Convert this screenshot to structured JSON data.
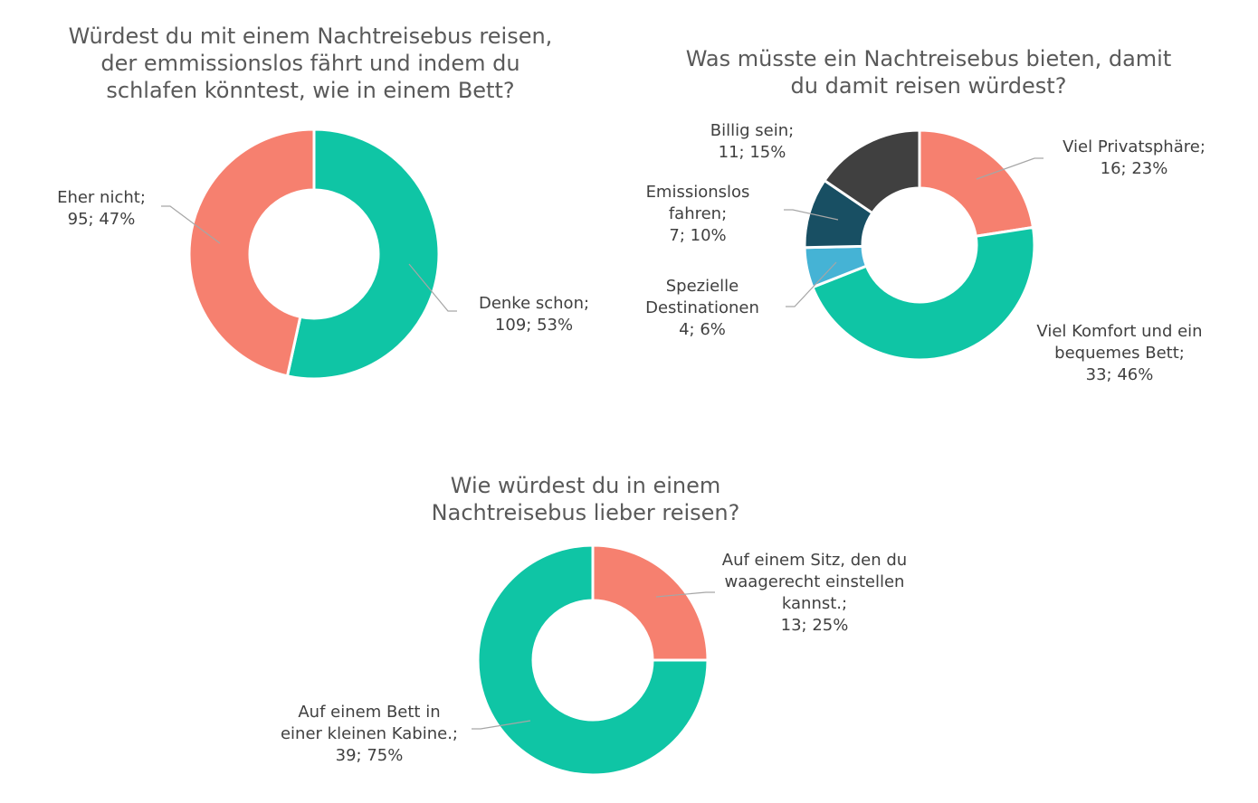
{
  "chart_data": [
    {
      "type": "pie",
      "variant": "donut",
      "title": "Würdest du mit einem Nachtreisebus reisen, der emmissionslos fährt und indem du schlafen könntest, wie in einem Bett?",
      "title_lines": [
        "Würdest du mit einem Nachtreisebus reisen,",
        "der emmissionslos fährt und indem du",
        "schlafen könntest, wie in einem Bett?"
      ],
      "slices": [
        {
          "label": "Denke schon",
          "value": 109,
          "percent": "53%",
          "color": "#0FC5A5",
          "label_lines": [
            "Denke schon;",
            "109; 53%"
          ]
        },
        {
          "label": "Eher nicht",
          "value": 95,
          "percent": "47%",
          "color": "#F6806F",
          "label_lines": [
            "Eher nicht;",
            "95; 47%"
          ]
        }
      ]
    },
    {
      "type": "pie",
      "variant": "donut",
      "title": "Was müsste ein Nachtreisebus bieten, damit du damit reisen würdest?",
      "title_lines": [
        "Was müsste ein Nachtreisebus bieten, damit",
        "du damit reisen würdest?"
      ],
      "slices": [
        {
          "label": "Viel Privatsphäre",
          "value": 16,
          "percent": "23%",
          "color": "#F6806F",
          "label_lines": [
            "Viel Privatsphäre;",
            "16; 23%"
          ]
        },
        {
          "label": "Viel Komfort und ein bequemes Bett",
          "value": 33,
          "percent": "46%",
          "color": "#0FC5A5",
          "label_lines": [
            "Viel Komfort und ein",
            "bequemes Bett;",
            "33; 46%"
          ]
        },
        {
          "label": "Spezielle Destinationen",
          "value": 4,
          "percent": "6%",
          "color": "#45B3D5",
          "label_lines": [
            "Spezielle",
            "Destinationen",
            "4; 6%"
          ]
        },
        {
          "label": "Emissionslos fahren",
          "value": 7,
          "percent": "10%",
          "color": "#184F63",
          "label_lines": [
            "Emissionslos",
            "fahren;",
            "7; 10%"
          ]
        },
        {
          "label": "Billig sein",
          "value": 11,
          "percent": "15%",
          "color": "#404040",
          "label_lines": [
            "Billig sein;",
            "11; 15%"
          ]
        }
      ]
    },
    {
      "type": "pie",
      "variant": "donut",
      "title": "Wie würdest du in einem Nachtreisebus lieber reisen?",
      "title_lines": [
        "Wie würdest du in einem",
        "Nachtreisebus lieber reisen?"
      ],
      "slices": [
        {
          "label": "Auf einem Sitz, den du waagerecht einstellen kannst.",
          "value": 13,
          "percent": "25%",
          "color": "#F6806F",
          "label_lines": [
            "Auf einem Sitz, den du",
            "waagerecht einstellen",
            "kannst.;",
            "13; 25%"
          ]
        },
        {
          "label": "Auf einem Bett in einer kleinen Kabine.",
          "value": 39,
          "percent": "75%",
          "color": "#0FC5A5",
          "label_lines": [
            "Auf einem Bett in",
            "einer kleinen Kabine.;",
            "39; 75%"
          ]
        }
      ]
    }
  ]
}
